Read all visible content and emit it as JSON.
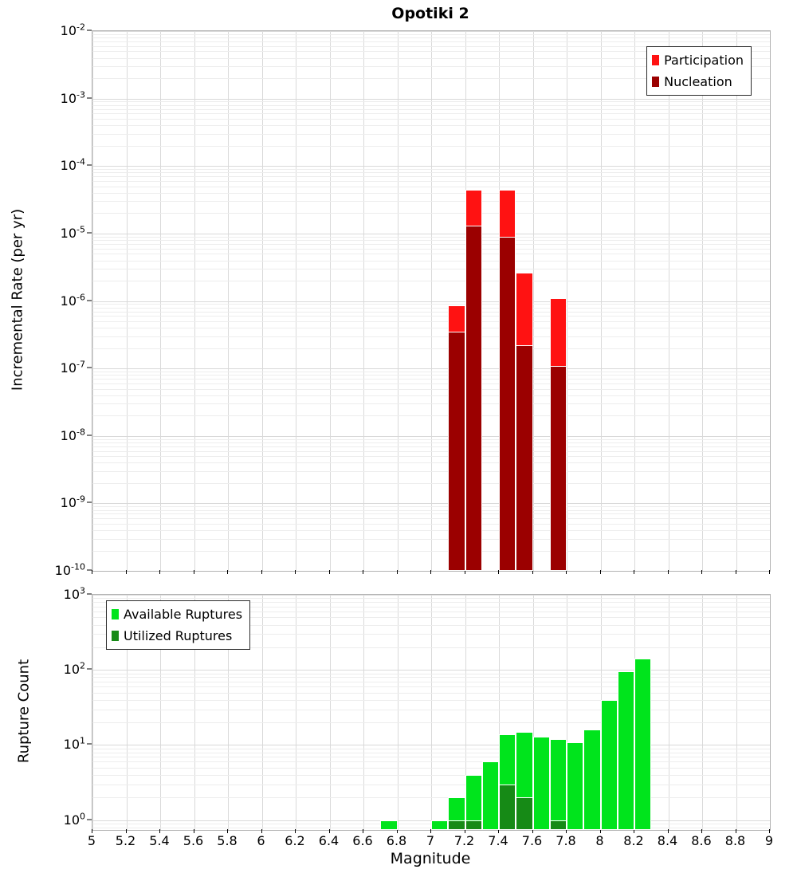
{
  "title": "Opotiki 2",
  "x_axis": {
    "label": "Magnitude",
    "min": 5,
    "max": 9,
    "tick_step": 0.2,
    "tick_labels": [
      "5",
      "5.2",
      "5.4",
      "5.6",
      "5.8",
      "6",
      "6.2",
      "6.4",
      "6.6",
      "6.8",
      "7",
      "7.2",
      "7.4",
      "7.6",
      "7.8",
      "8",
      "8.2",
      "8.4",
      "8.6",
      "8.8",
      "9"
    ]
  },
  "chart_data": [
    {
      "type": "bar",
      "title": "Opotiki 2",
      "ylabel": "Incremental Rate (per yr)",
      "y_scale": "log",
      "grid": true,
      "legend_position": "top-right",
      "y_ticks_exp": [
        -2,
        -3,
        -4,
        -5,
        -6,
        -7,
        -8,
        -9,
        -10
      ],
      "y_range_exp": [
        -10,
        -2
      ],
      "x_range": [
        5,
        9
      ],
      "bin_width": 0.1,
      "series": [
        {
          "name": "Participation",
          "color": "#ff1212",
          "bins": [
            [
              7.15,
              8.5e-07
            ],
            [
              7.25,
              4.5e-05
            ],
            [
              7.45,
              4.5e-05
            ],
            [
              7.55,
              2.6e-06
            ],
            [
              7.75,
              1.1e-06
            ]
          ]
        },
        {
          "name": "Nucleation",
          "color": "#9b0000",
          "bins": [
            [
              7.15,
              3.5e-07
            ],
            [
              7.25,
              1.3e-05
            ],
            [
              7.45,
              9e-06
            ],
            [
              7.55,
              2.2e-07
            ],
            [
              7.75,
              1.1e-07
            ]
          ]
        }
      ]
    },
    {
      "type": "bar",
      "ylabel": "Rupture Count",
      "y_scale": "log",
      "grid": true,
      "legend_position": "top-left",
      "y_ticks_exp": [
        3,
        2,
        1,
        0
      ],
      "y_range_exp": [
        -0.13,
        3
      ],
      "x_range": [
        5,
        9
      ],
      "bin_width": 0.1,
      "series": [
        {
          "name": "Available Ruptures",
          "color": "#00e41c",
          "bins": [
            [
              6.75,
              1
            ],
            [
              7.05,
              1
            ],
            [
              7.15,
              2
            ],
            [
              7.25,
              4
            ],
            [
              7.35,
              6
            ],
            [
              7.45,
              14
            ],
            [
              7.55,
              15
            ],
            [
              7.65,
              13
            ],
            [
              7.75,
              12
            ],
            [
              7.85,
              11
            ],
            [
              7.95,
              16
            ],
            [
              8.05,
              40
            ],
            [
              8.15,
              95
            ],
            [
              8.25,
              140
            ]
          ]
        },
        {
          "name": "Utilized Ruptures",
          "color": "#168a16",
          "bins": [
            [
              7.15,
              1
            ],
            [
              7.25,
              1
            ],
            [
              7.45,
              3
            ],
            [
              7.55,
              2
            ],
            [
              7.75,
              1
            ]
          ]
        }
      ]
    }
  ]
}
